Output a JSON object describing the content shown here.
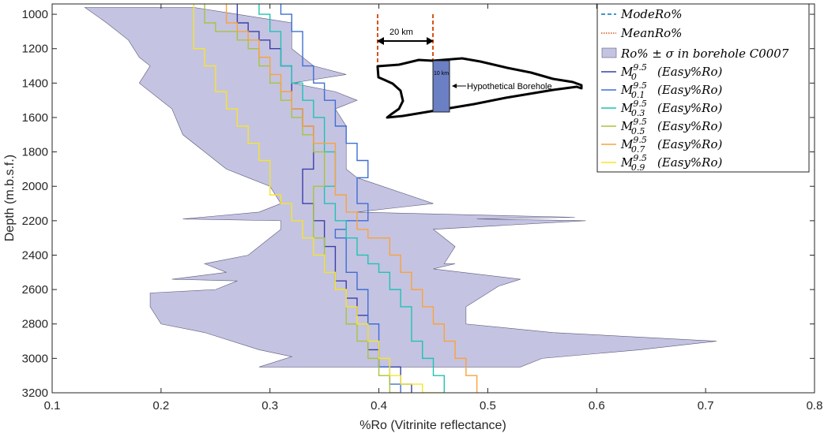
{
  "chart_data": {
    "type": "line",
    "xlabel": "%Ro (Vitrinite reflectance)",
    "ylabel": "Depth (m.b.s.f.)",
    "xlim": [
      0.1,
      0.8
    ],
    "ylim": [
      3200,
      940
    ],
    "y_inverted": true,
    "xticks": [
      0.1,
      0.2,
      0.3,
      0.4,
      0.5,
      0.6,
      0.7,
      0.8
    ],
    "yticks": [
      1000,
      1200,
      1400,
      1600,
      1800,
      2000,
      2200,
      2400,
      2600,
      2800,
      3000,
      3200
    ],
    "grid": false,
    "legend_position": "top-right",
    "legend": [
      {
        "label": "ModeRo%",
        "color": "#0072BD",
        "style": "dashed"
      },
      {
        "label": "MeanRo%",
        "color": "#D95319",
        "style": "dotted"
      },
      {
        "label": "Ro% ± σ in borehole C0007",
        "color": "#c5c3e2",
        "style": "patch"
      },
      {
        "label": "M",
        "sup": "9.5",
        "sub": "0",
        "suffix": "(Easy%Ro)",
        "color": "#3b3fa6"
      },
      {
        "label": "M",
        "sup": "9.5",
        "sub": "0.1",
        "suffix": "(Easy%Ro)",
        "color": "#3e6fd2"
      },
      {
        "label": "M",
        "sup": "9.5",
        "sub": "0.3",
        "suffix": "(Easy%Ro)",
        "color": "#1fc3b4"
      },
      {
        "label": "M",
        "sup": "9.5",
        "sub": "0.5",
        "suffix": "(Easy%Ro)",
        "color": "#a8c43a"
      },
      {
        "label": "M",
        "sup": "9.5",
        "sub": "0.7",
        "suffix": "(Easy%Ro)",
        "color": "#f9a33b"
      },
      {
        "label": "M",
        "sup": "9.5",
        "sub": "0.9",
        "suffix": "(Easy%Ro)",
        "color": "#f5e52a"
      }
    ],
    "band": {
      "name": "Ro% ± σ in borehole C0007",
      "color": "#c5c3e2",
      "left": [
        [
          0.13,
          960
        ],
        [
          0.15,
          1050
        ],
        [
          0.17,
          1150
        ],
        [
          0.18,
          1250
        ],
        [
          0.19,
          1300
        ],
        [
          0.18,
          1400
        ],
        [
          0.21,
          1550
        ],
        [
          0.22,
          1700
        ],
        [
          0.25,
          1850
        ],
        [
          0.26,
          1900
        ],
        [
          0.28,
          1950
        ],
        [
          0.3,
          2000
        ],
        [
          0.31,
          2100
        ],
        [
          0.29,
          2150
        ],
        [
          0.22,
          2190
        ],
        [
          0.31,
          2200
        ],
        [
          0.31,
          2250
        ],
        [
          0.3,
          2300
        ],
        [
          0.28,
          2400
        ],
        [
          0.24,
          2450
        ],
        [
          0.26,
          2500
        ],
        [
          0.21,
          2540
        ],
        [
          0.27,
          2550
        ],
        [
          0.25,
          2600
        ],
        [
          0.19,
          2620
        ],
        [
          0.19,
          2700
        ],
        [
          0.2,
          2800
        ],
        [
          0.24,
          2850
        ],
        [
          0.29,
          2950
        ],
        [
          0.32,
          2990
        ],
        [
          0.29,
          3050
        ]
      ],
      "right": [
        [
          0.23,
          960
        ],
        [
          0.26,
          990
        ],
        [
          0.29,
          1020
        ],
        [
          0.31,
          1040
        ],
        [
          0.32,
          1050
        ],
        [
          0.32,
          1100
        ],
        [
          0.32,
          1200
        ],
        [
          0.34,
          1300
        ],
        [
          0.37,
          1350
        ],
        [
          0.32,
          1400
        ],
        [
          0.36,
          1450
        ],
        [
          0.38,
          1500
        ],
        [
          0.36,
          1550
        ],
        [
          0.37,
          1650
        ],
        [
          0.37,
          1800
        ],
        [
          0.37,
          1900
        ],
        [
          0.38,
          1950
        ],
        [
          0.45,
          2100
        ],
        [
          0.38,
          2150
        ],
        [
          0.58,
          2180
        ],
        [
          0.49,
          2190
        ],
        [
          0.59,
          2200
        ],
        [
          0.45,
          2250
        ],
        [
          0.47,
          2350
        ],
        [
          0.46,
          2450
        ],
        [
          0.47,
          2450
        ],
        [
          0.45,
          2480
        ],
        [
          0.53,
          2540
        ],
        [
          0.51,
          2580
        ],
        [
          0.48,
          2700
        ],
        [
          0.48,
          2800
        ],
        [
          0.56,
          2850
        ],
        [
          0.71,
          2900
        ],
        [
          0.64,
          2950
        ],
        [
          0.55,
          3000
        ],
        [
          0.53,
          3050
        ]
      ]
    },
    "series": [
      {
        "name": "M0",
        "color": "#3b3fa6",
        "points": [
          [
            0.27,
            940
          ],
          [
            0.27,
            1000
          ],
          [
            0.28,
            1050
          ],
          [
            0.29,
            1100
          ],
          [
            0.3,
            1150
          ],
          [
            0.31,
            1200
          ],
          [
            0.32,
            1300
          ],
          [
            0.32,
            1450
          ],
          [
            0.33,
            1550
          ],
          [
            0.34,
            1650
          ],
          [
            0.34,
            1800
          ],
          [
            0.33,
            1900
          ],
          [
            0.33,
            2000
          ],
          [
            0.34,
            2100
          ],
          [
            0.35,
            2200
          ],
          [
            0.36,
            2350
          ],
          [
            0.36,
            2450
          ],
          [
            0.37,
            2550
          ],
          [
            0.38,
            2650
          ],
          [
            0.39,
            2750
          ],
          [
            0.39,
            2850
          ],
          [
            0.4,
            2950
          ],
          [
            0.42,
            3050
          ],
          [
            0.43,
            3150
          ],
          [
            0.43,
            3200
          ]
        ]
      },
      {
        "name": "M0.1",
        "color": "#3e6fd2",
        "points": [
          [
            0.31,
            940
          ],
          [
            0.32,
            1000
          ],
          [
            0.33,
            1100
          ],
          [
            0.33,
            1200
          ],
          [
            0.34,
            1300
          ],
          [
            0.35,
            1400
          ],
          [
            0.36,
            1500
          ],
          [
            0.36,
            1550
          ],
          [
            0.37,
            1650
          ],
          [
            0.38,
            1750
          ],
          [
            0.39,
            1850
          ],
          [
            0.38,
            1950
          ],
          [
            0.39,
            2100
          ],
          [
            0.37,
            2200
          ],
          [
            0.36,
            2250
          ],
          [
            0.37,
            2300
          ],
          [
            0.37,
            2400
          ],
          [
            0.38,
            2500
          ],
          [
            0.39,
            2600
          ],
          [
            0.39,
            2700
          ],
          [
            0.4,
            2800
          ],
          [
            0.4,
            2950
          ],
          [
            0.41,
            3050
          ],
          [
            0.42,
            3150
          ],
          [
            0.42,
            3200
          ]
        ]
      },
      {
        "name": "M0.3",
        "color": "#1fc3b4",
        "points": [
          [
            0.29,
            940
          ],
          [
            0.3,
            1000
          ],
          [
            0.31,
            1100
          ],
          [
            0.31,
            1200
          ],
          [
            0.32,
            1300
          ],
          [
            0.33,
            1400
          ],
          [
            0.34,
            1500
          ],
          [
            0.35,
            1600
          ],
          [
            0.35,
            1700
          ],
          [
            0.36,
            1800
          ],
          [
            0.36,
            1900
          ],
          [
            0.35,
            2000
          ],
          [
            0.36,
            2100
          ],
          [
            0.37,
            2200
          ],
          [
            0.38,
            2300
          ],
          [
            0.39,
            2400
          ],
          [
            0.4,
            2450
          ],
          [
            0.41,
            2500
          ],
          [
            0.42,
            2600
          ],
          [
            0.43,
            2700
          ],
          [
            0.43,
            2800
          ],
          [
            0.44,
            2900
          ],
          [
            0.45,
            3000
          ],
          [
            0.46,
            3100
          ],
          [
            0.46,
            3200
          ]
        ]
      },
      {
        "name": "M0.5",
        "color": "#a8c43a",
        "points": [
          [
            0.24,
            940
          ],
          [
            0.25,
            1050
          ],
          [
            0.27,
            1100
          ],
          [
            0.28,
            1150
          ],
          [
            0.29,
            1200
          ],
          [
            0.3,
            1300
          ],
          [
            0.31,
            1400
          ],
          [
            0.32,
            1500
          ],
          [
            0.33,
            1600
          ],
          [
            0.34,
            1700
          ],
          [
            0.35,
            1800
          ],
          [
            0.35,
            1900
          ],
          [
            0.34,
            2000
          ],
          [
            0.34,
            2100
          ],
          [
            0.34,
            2200
          ],
          [
            0.35,
            2300
          ],
          [
            0.35,
            2400
          ],
          [
            0.36,
            2500
          ],
          [
            0.37,
            2600
          ],
          [
            0.37,
            2700
          ],
          [
            0.38,
            2800
          ],
          [
            0.39,
            2900
          ],
          [
            0.4,
            3000
          ],
          [
            0.41,
            3100
          ],
          [
            0.42,
            3200
          ]
        ]
      },
      {
        "name": "M0.7",
        "color": "#f9a33b",
        "points": [
          [
            0.26,
            940
          ],
          [
            0.26,
            1000
          ],
          [
            0.27,
            1050
          ],
          [
            0.28,
            1100
          ],
          [
            0.29,
            1150
          ],
          [
            0.3,
            1250
          ],
          [
            0.31,
            1350
          ],
          [
            0.32,
            1450
          ],
          [
            0.33,
            1550
          ],
          [
            0.34,
            1650
          ],
          [
            0.36,
            1750
          ],
          [
            0.36,
            1850
          ],
          [
            0.36,
            1950
          ],
          [
            0.37,
            2050
          ],
          [
            0.38,
            2150
          ],
          [
            0.39,
            2250
          ],
          [
            0.41,
            2300
          ],
          [
            0.42,
            2400
          ],
          [
            0.43,
            2500
          ],
          [
            0.44,
            2600
          ],
          [
            0.45,
            2700
          ],
          [
            0.46,
            2800
          ],
          [
            0.47,
            2900
          ],
          [
            0.48,
            3000
          ],
          [
            0.49,
            3100
          ],
          [
            0.49,
            3200
          ]
        ]
      },
      {
        "name": "M0.9",
        "color": "#f5e52a",
        "points": [
          [
            0.23,
            940
          ],
          [
            0.23,
            1100
          ],
          [
            0.24,
            1200
          ],
          [
            0.25,
            1300
          ],
          [
            0.26,
            1450
          ],
          [
            0.27,
            1550
          ],
          [
            0.28,
            1650
          ],
          [
            0.29,
            1750
          ],
          [
            0.3,
            1850
          ],
          [
            0.3,
            1950
          ],
          [
            0.31,
            2050
          ],
          [
            0.32,
            2100
          ],
          [
            0.33,
            2200
          ],
          [
            0.34,
            2300
          ],
          [
            0.35,
            2400
          ],
          [
            0.36,
            2500
          ],
          [
            0.37,
            2600
          ],
          [
            0.38,
            2700
          ],
          [
            0.39,
            2800
          ],
          [
            0.4,
            2900
          ],
          [
            0.41,
            3000
          ],
          [
            0.42,
            3100
          ],
          [
            0.44,
            3150
          ],
          [
            0.46,
            3200
          ]
        ]
      }
    ],
    "inset": {
      "distance_label": "20 km",
      "depth_label": "10 km",
      "borehole_label": "Hypothetical Borehole",
      "borehole_color": "#6b7fc4",
      "marker_color": "#D95319"
    }
  }
}
